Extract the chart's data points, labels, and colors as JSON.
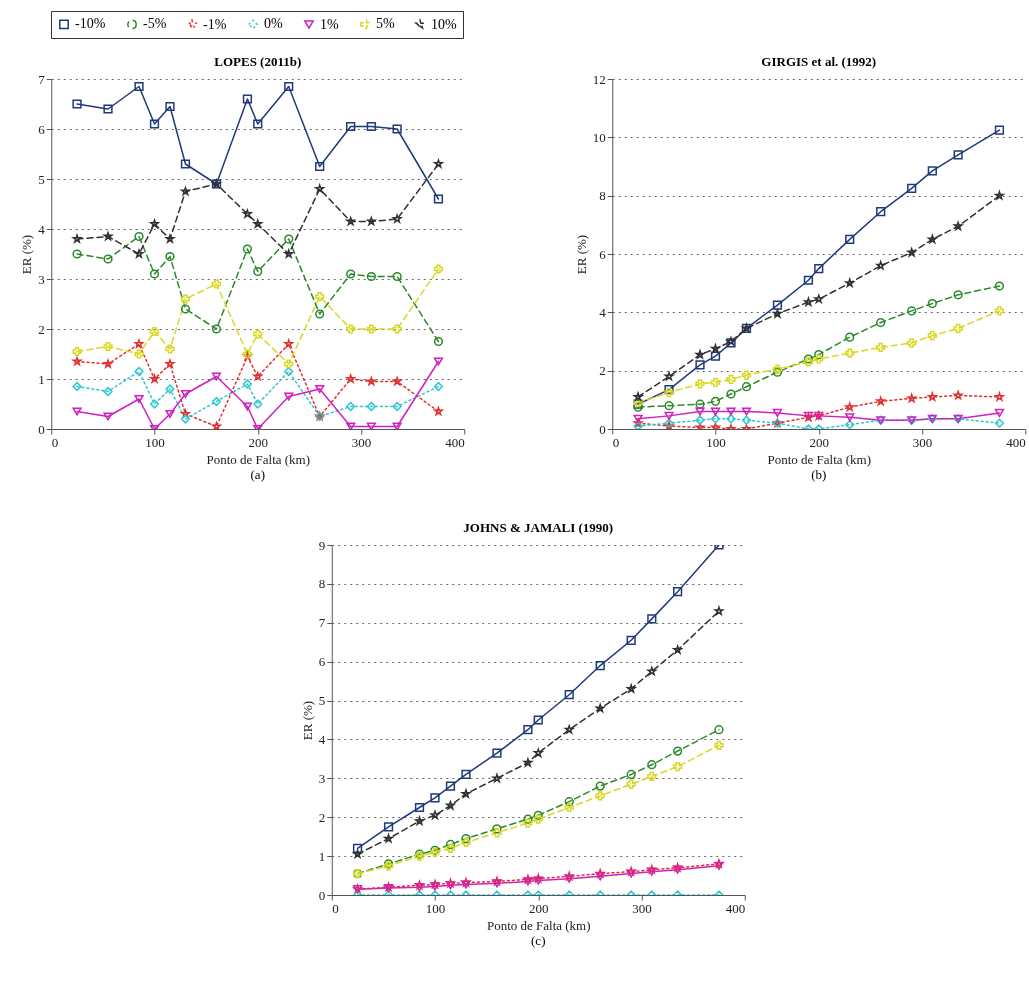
{
  "chart_data": [
    {
      "type": "line",
      "title": "LOPES (2011b)",
      "xlabel": "Ponto de Falta (km)",
      "ylabel": "ER (%)",
      "annotations": [
        "(a)"
      ],
      "legend": "top",
      "grid": "y",
      "x": [
        25,
        55,
        85,
        100,
        115,
        130,
        160,
        190,
        200,
        230,
        260,
        290,
        310,
        335,
        375
      ],
      "xlim": [
        0,
        400
      ],
      "xticks": [
        0,
        100,
        200,
        300,
        400
      ],
      "ylim": [
        0,
        7
      ],
      "yticks": [
        0,
        1,
        2,
        3,
        4,
        5,
        6,
        7
      ],
      "series": [
        {
          "name": "-10%",
          "color": "#1f3a7a",
          "marker": "square",
          "line_style": "solid",
          "values": [
            6.5,
            6.4,
            6.85,
            6.1,
            6.45,
            5.3,
            4.9,
            6.6,
            6.1,
            6.85,
            5.25,
            6.05,
            6.05,
            6.0,
            4.6
          ]
        },
        {
          "name": "-5%",
          "color": "#2a8a2a",
          "marker": "circle",
          "line_style": "dashed",
          "values": [
            3.5,
            3.4,
            3.85,
            3.1,
            3.45,
            2.4,
            2.0,
            3.6,
            3.15,
            3.8,
            2.3,
            3.1,
            3.05,
            3.05,
            1.75
          ]
        },
        {
          "name": "-1%",
          "color": "#e03030",
          "marker": "star",
          "line_style": "dotted",
          "values": [
            1.35,
            1.3,
            1.7,
            1.0,
            1.3,
            0.3,
            0.05,
            1.45,
            1.05,
            1.7,
            0.25,
            1.0,
            0.95,
            0.95,
            0.35
          ]
        },
        {
          "name": "0%",
          "color": "#30c8d0",
          "marker": "diamond",
          "line_style": "dotted",
          "values": [
            0.85,
            0.75,
            1.15,
            0.5,
            0.8,
            0.2,
            0.55,
            0.9,
            0.5,
            1.15,
            0.25,
            0.45,
            0.45,
            0.45,
            0.85
          ]
        },
        {
          "name": "1%",
          "color": "#d020c0",
          "marker": "triangle",
          "line_style": "solid",
          "values": [
            0.35,
            0.25,
            0.6,
            0.0,
            0.3,
            0.7,
            1.05,
            0.45,
            0.0,
            0.65,
            0.8,
            0.05,
            0.05,
            0.05,
            1.35
          ]
        },
        {
          "name": "5%",
          "color": "#d8d820",
          "marker": "cross",
          "line_style": "dashed",
          "values": [
            1.55,
            1.65,
            1.5,
            1.95,
            1.6,
            2.6,
            2.9,
            1.5,
            1.9,
            1.3,
            2.65,
            2.0,
            2.0,
            2.0,
            3.2
          ]
        },
        {
          "name": "10%",
          "color": "#303030",
          "marker": "star",
          "line_style": "dashed",
          "values": [
            3.8,
            3.85,
            3.5,
            4.1,
            3.8,
            4.75,
            4.9,
            4.3,
            4.1,
            3.5,
            4.8,
            4.15,
            4.15,
            4.2,
            5.3
          ]
        }
      ]
    },
    {
      "type": "line",
      "title": "GIRGIS et al. (1992)",
      "xlabel": "Ponto de Falta (km)",
      "ylabel": "ER (%)",
      "annotations": [
        "(b)"
      ],
      "grid": "y",
      "x": [
        25,
        55,
        85,
        100,
        115,
        130,
        160,
        190,
        200,
        230,
        260,
        290,
        310,
        335,
        375
      ],
      "xlim": [
        0,
        400
      ],
      "xticks": [
        0,
        100,
        200,
        300,
        400
      ],
      "ylim": [
        0,
        12
      ],
      "yticks": [
        0,
        2,
        4,
        6,
        8,
        10,
        12
      ],
      "series": [
        {
          "name": "-10%",
          "color": "#1f3a7a",
          "marker": "square",
          "line_style": "solid",
          "values": [
            0.85,
            1.35,
            2.2,
            2.5,
            2.95,
            3.45,
            4.25,
            5.1,
            5.5,
            6.5,
            7.45,
            8.25,
            8.85,
            9.4,
            10.25
          ]
        },
        {
          "name": "-5%",
          "color": "#2a8a2a",
          "marker": "circle",
          "line_style": "dashed",
          "values": [
            0.75,
            0.8,
            0.85,
            0.95,
            1.2,
            1.45,
            1.95,
            2.4,
            2.55,
            3.15,
            3.65,
            4.05,
            4.3,
            4.6,
            4.9
          ]
        },
        {
          "name": "-1%",
          "color": "#e03030",
          "marker": "star",
          "line_style": "dotted",
          "values": [
            0.2,
            0.1,
            0.05,
            0.05,
            0.0,
            0.0,
            0.2,
            0.4,
            0.45,
            0.75,
            0.95,
            1.05,
            1.1,
            1.15,
            1.1
          ]
        },
        {
          "name": "0%",
          "color": "#30c8d0",
          "marker": "diamond",
          "line_style": "dotted",
          "values": [
            0.1,
            0.2,
            0.3,
            0.35,
            0.35,
            0.3,
            0.2,
            0.0,
            0.0,
            0.15,
            0.3,
            0.3,
            0.35,
            0.35,
            0.2
          ]
        },
        {
          "name": "1%",
          "color": "#d020c0",
          "marker": "triangle",
          "line_style": "solid",
          "values": [
            0.35,
            0.45,
            0.6,
            0.6,
            0.6,
            0.6,
            0.55,
            0.45,
            0.45,
            0.4,
            0.3,
            0.3,
            0.35,
            0.35,
            0.55
          ]
        },
        {
          "name": "5%",
          "color": "#d8d820",
          "marker": "cross",
          "line_style": "dashed",
          "values": [
            0.9,
            1.25,
            1.55,
            1.6,
            1.7,
            1.85,
            2.05,
            2.3,
            2.4,
            2.6,
            2.8,
            2.95,
            3.2,
            3.45,
            4.05
          ]
        },
        {
          "name": "10%",
          "color": "#303030",
          "marker": "star",
          "line_style": "dashed",
          "values": [
            1.1,
            1.8,
            2.55,
            2.75,
            3.0,
            3.45,
            3.95,
            4.35,
            4.45,
            5.0,
            5.6,
            6.05,
            6.5,
            6.95,
            8.0
          ]
        }
      ]
    },
    {
      "type": "line",
      "title": "JOHNS & JAMALI (1990)",
      "xlabel": "Ponto de Falta (km)",
      "ylabel": "ER (%)",
      "annotations": [
        "(c)"
      ],
      "grid": "y",
      "x": [
        25,
        55,
        85,
        100,
        115,
        130,
        160,
        190,
        200,
        230,
        260,
        290,
        310,
        335,
        375
      ],
      "xlim": [
        0,
        400
      ],
      "xticks": [
        0,
        100,
        200,
        300,
        400
      ],
      "ylim": [
        0,
        9
      ],
      "yticks": [
        0,
        1,
        2,
        3,
        4,
        5,
        6,
        7,
        8,
        9
      ],
      "series": [
        {
          "name": "-10%",
          "color": "#1f3a7a",
          "marker": "square",
          "line_style": "solid",
          "values": [
            1.2,
            1.75,
            2.25,
            2.5,
            2.8,
            3.1,
            3.65,
            4.25,
            4.5,
            5.15,
            5.9,
            6.55,
            7.1,
            7.8,
            9.0
          ]
        },
        {
          "name": "-5%",
          "color": "#2a8a2a",
          "marker": "circle",
          "line_style": "dashed",
          "values": [
            0.55,
            0.8,
            1.05,
            1.15,
            1.3,
            1.45,
            1.7,
            1.95,
            2.05,
            2.4,
            2.8,
            3.1,
            3.35,
            3.7,
            4.25
          ]
        },
        {
          "name": "-1%",
          "color": "#e03030",
          "marker": "star",
          "line_style": "dotted",
          "values": [
            0.15,
            0.2,
            0.25,
            0.27,
            0.3,
            0.32,
            0.35,
            0.4,
            0.42,
            0.48,
            0.55,
            0.6,
            0.65,
            0.7,
            0.8
          ]
        },
        {
          "name": "0%",
          "color": "#30c8d0",
          "marker": "diamond",
          "line_style": "dotted",
          "values": [
            0,
            0,
            0,
            0,
            0,
            0,
            0,
            0,
            0,
            0,
            0,
            0,
            0,
            0,
            0
          ]
        },
        {
          "name": "1%",
          "color": "#d020c0",
          "marker": "triangle",
          "line_style": "solid",
          "values": [
            0.15,
            0.18,
            0.2,
            0.22,
            0.25,
            0.27,
            0.3,
            0.35,
            0.37,
            0.42,
            0.48,
            0.55,
            0.6,
            0.65,
            0.75
          ]
        },
        {
          "name": "5%",
          "color": "#d8d820",
          "marker": "cross",
          "line_style": "dashed",
          "values": [
            0.55,
            0.75,
            1.0,
            1.1,
            1.2,
            1.35,
            1.6,
            1.85,
            1.95,
            2.25,
            2.55,
            2.85,
            3.05,
            3.3,
            3.85
          ]
        },
        {
          "name": "10%",
          "color": "#303030",
          "marker": "star",
          "line_style": "dashed",
          "values": [
            1.05,
            1.45,
            1.9,
            2.05,
            2.3,
            2.6,
            3.0,
            3.4,
            3.65,
            4.25,
            4.8,
            5.3,
            5.75,
            6.3,
            7.3
          ]
        }
      ]
    }
  ]
}
